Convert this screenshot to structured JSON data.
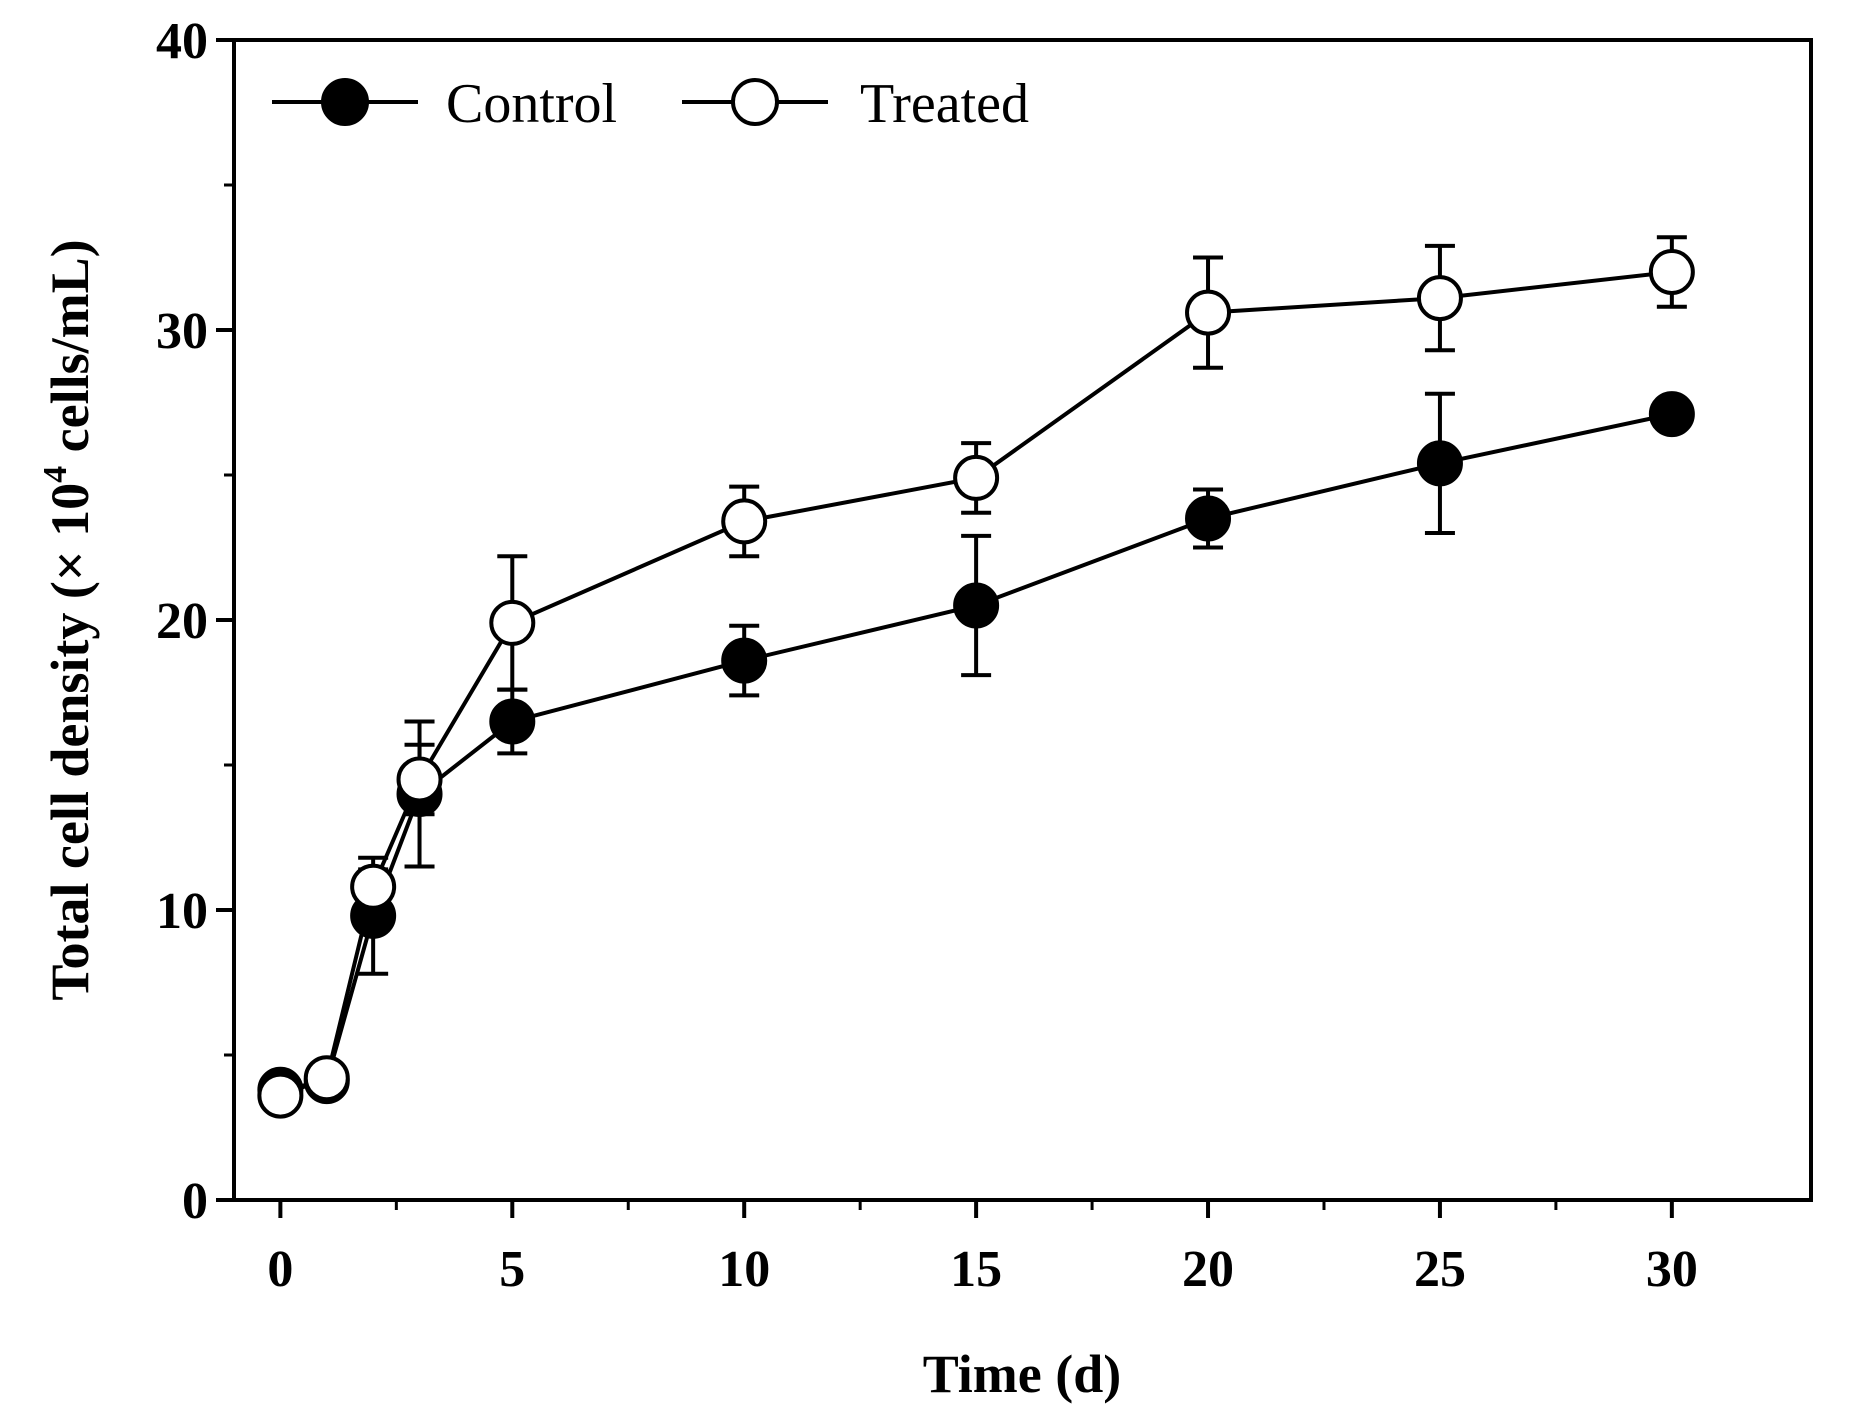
{
  "chart_data": {
    "type": "line",
    "title": "",
    "xlabel": "Time (d)",
    "ylabel_main": "Total cell density (× 10",
    "ylabel_sup": "4",
    "ylabel_tail": " cells/mL)",
    "xlim": [
      -1,
      33
    ],
    "ylim": [
      0,
      40
    ],
    "xticks": [
      0,
      5,
      10,
      15,
      20,
      25,
      30
    ],
    "yticks": [
      0,
      10,
      20,
      30,
      40
    ],
    "minor_yticks": [
      5,
      15,
      25,
      35
    ],
    "minor_xticks": [
      2.5,
      7.5,
      12.5,
      17.5,
      22.5,
      27.5
    ],
    "grid": false,
    "legend_position": "top-left",
    "series": [
      {
        "name": "Control",
        "marker": "filled-circle",
        "x": [
          0,
          1,
          2,
          3,
          5,
          10,
          15,
          20,
          25,
          30
        ],
        "y": [
          3.8,
          4.1,
          9.8,
          14.0,
          16.5,
          18.6,
          20.5,
          23.5,
          25.4,
          27.1
        ],
        "err": [
          0.5,
          0.3,
          2.0,
          2.5,
          1.1,
          1.2,
          2.4,
          1.0,
          2.4,
          0.3
        ]
      },
      {
        "name": "Treated",
        "marker": "open-circle",
        "x": [
          0,
          1,
          2,
          3,
          5,
          10,
          15,
          20,
          25,
          30
        ],
        "y": [
          3.6,
          4.2,
          10.8,
          14.5,
          19.9,
          23.4,
          24.9,
          30.6,
          31.1,
          32.0
        ],
        "err": [
          0.3,
          0.3,
          0.6,
          1.2,
          2.3,
          1.2,
          1.2,
          1.9,
          1.8,
          1.2
        ]
      }
    ]
  }
}
